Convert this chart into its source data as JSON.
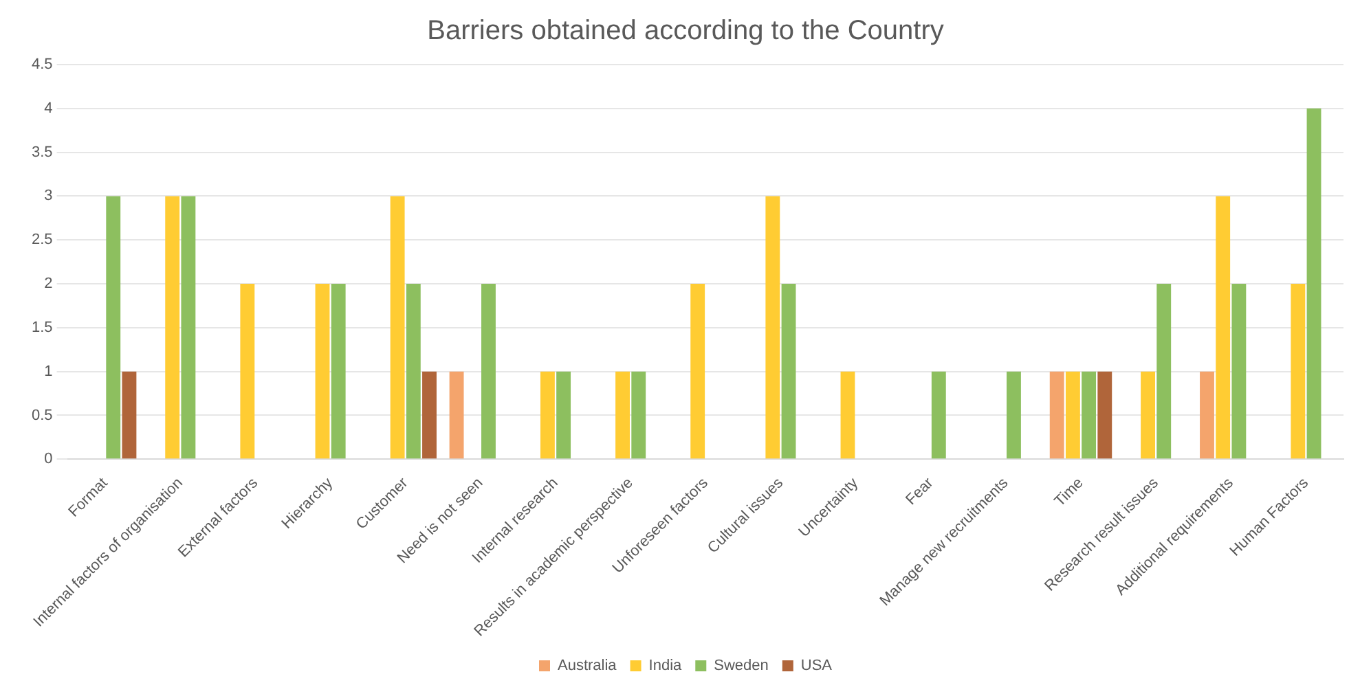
{
  "chart_data": {
    "type": "bar",
    "title": "Barriers obtained according to the Country",
    "categories": [
      "Format",
      "Internal factors of organisation",
      "External factors",
      "Hierarchy",
      "Customer",
      "Need is not seen",
      "Internal research",
      "Results in academic perspective",
      "Unforeseen factors",
      "Cultural issues",
      "Uncertainty",
      "Fear",
      "Manage new recruitments",
      "Time",
      "Research result issues",
      "Additional requirements",
      "Human Factors"
    ],
    "series": [
      {
        "name": "Australia",
        "color": "#f4a46c",
        "values": [
          null,
          null,
          null,
          null,
          null,
          1,
          null,
          null,
          null,
          null,
          null,
          null,
          null,
          1,
          null,
          1,
          null
        ]
      },
      {
        "name": "India",
        "color": "#ffcc33",
        "values": [
          null,
          3,
          2,
          2,
          3,
          null,
          1,
          1,
          2,
          3,
          1,
          null,
          null,
          1,
          1,
          3,
          2
        ]
      },
      {
        "name": "Sweden",
        "color": "#8dbf5f",
        "values": [
          3,
          3,
          null,
          2,
          2,
          2,
          1,
          1,
          null,
          2,
          null,
          1,
          1,
          1,
          2,
          2,
          4
        ]
      },
      {
        "name": "USA",
        "color": "#b0653a",
        "values": [
          1,
          null,
          null,
          null,
          1,
          null,
          null,
          null,
          null,
          null,
          null,
          null,
          null,
          1,
          null,
          null,
          null
        ]
      }
    ],
    "ylim": [
      0,
      4.5
    ],
    "yticks": [
      0,
      0.5,
      1,
      1.5,
      2,
      2.5,
      3,
      3.5,
      4,
      4.5
    ],
    "grid": "y",
    "legend": "bottom"
  }
}
